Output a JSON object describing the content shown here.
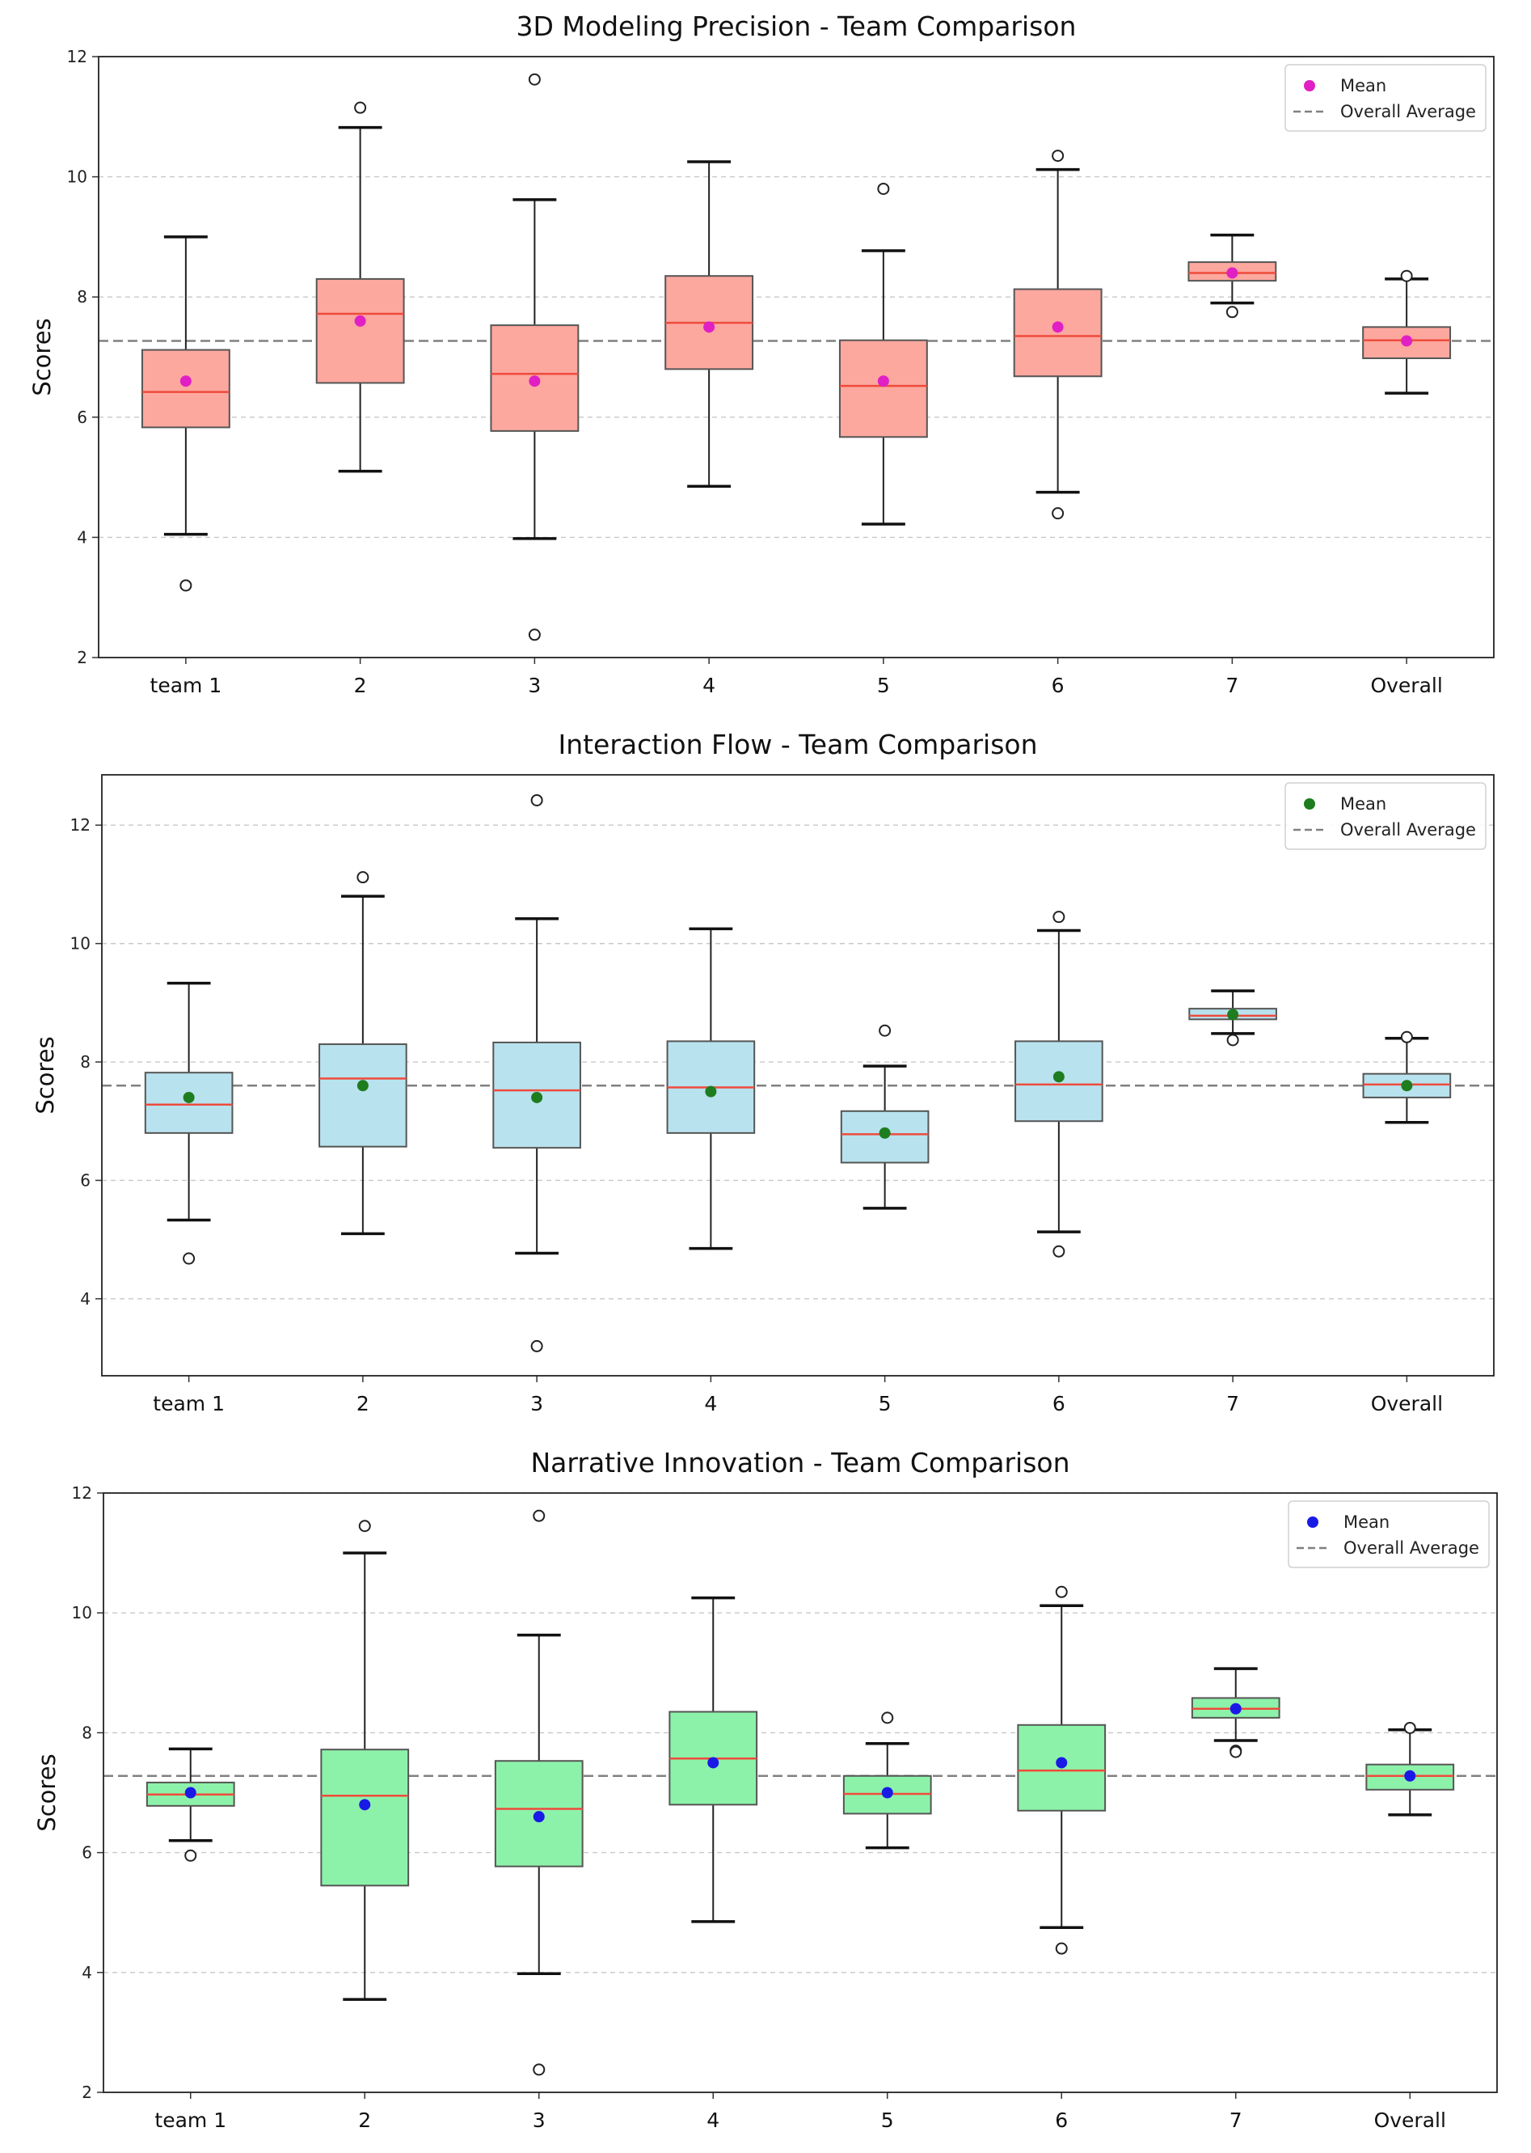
{
  "chart_data": [
    {
      "type": "box",
      "title": "3D Modeling Precision - Team Comparison",
      "ylabel": "Scores",
      "xlabel": "",
      "ylim": [
        2,
        12
      ],
      "yticks": [
        2,
        4,
        6,
        8,
        10,
        12
      ],
      "categories": [
        "team 1",
        "2",
        "3",
        "4",
        "5",
        "6",
        "7",
        "Overall"
      ],
      "overall_average": 7.27,
      "legend": {
        "position": "top-right",
        "entries": [
          "Mean",
          "Overall Average"
        ]
      },
      "grid": "y-dashed",
      "colors": {
        "box": "#fca89f",
        "median": "#ef4b3c",
        "mean": "#e020c4",
        "average_line": "#808080"
      },
      "boxes": [
        {
          "whislo": 4.05,
          "q1": 5.83,
          "med": 6.42,
          "q3": 7.12,
          "whishi": 9.0,
          "mean": 6.6,
          "fliers": [
            3.2
          ]
        },
        {
          "whislo": 5.1,
          "q1": 6.57,
          "med": 7.72,
          "q3": 8.3,
          "whishi": 10.82,
          "mean": 7.6,
          "fliers": [
            11.15
          ]
        },
        {
          "whislo": 3.98,
          "q1": 5.77,
          "med": 6.72,
          "q3": 7.53,
          "whishi": 9.62,
          "mean": 6.6,
          "fliers": [
            11.62,
            2.38
          ]
        },
        {
          "whislo": 4.85,
          "q1": 6.8,
          "med": 7.57,
          "q3": 8.35,
          "whishi": 10.25,
          "mean": 7.5,
          "fliers": []
        },
        {
          "whislo": 4.22,
          "q1": 5.67,
          "med": 6.52,
          "q3": 7.28,
          "whishi": 8.77,
          "mean": 6.6,
          "fliers": [
            9.8
          ]
        },
        {
          "whislo": 4.75,
          "q1": 6.68,
          "med": 7.35,
          "q3": 8.13,
          "whishi": 10.12,
          "mean": 7.5,
          "fliers": [
            10.35,
            4.4
          ]
        },
        {
          "whislo": 7.9,
          "q1": 8.27,
          "med": 8.4,
          "q3": 8.58,
          "whishi": 9.03,
          "mean": 8.4,
          "fliers": [
            7.75
          ]
        },
        {
          "whislo": 6.4,
          "q1": 6.98,
          "med": 7.28,
          "q3": 7.5,
          "whishi": 8.3,
          "mean": 7.27,
          "fliers": [
            8.35
          ]
        }
      ]
    },
    {
      "type": "box",
      "title": "Interaction Flow - Team Comparison",
      "ylabel": "Scores",
      "xlabel": "",
      "ylim": [
        2.7,
        12.85
      ],
      "yticks": [
        4,
        6,
        8,
        10,
        12
      ],
      "categories": [
        "team 1",
        "2",
        "3",
        "4",
        "5",
        "6",
        "7",
        "Overall"
      ],
      "overall_average": 7.6,
      "legend": {
        "position": "top-right",
        "entries": [
          "Mean",
          "Overall Average"
        ]
      },
      "grid": "y-dashed",
      "colors": {
        "box": "#b8e2ee",
        "median": "#ef4b3c",
        "mean": "#1e7d1e",
        "average_line": "#808080"
      },
      "boxes": [
        {
          "whislo": 5.33,
          "q1": 6.8,
          "med": 7.28,
          "q3": 7.82,
          "whishi": 9.33,
          "mean": 7.4,
          "fliers": [
            4.68
          ]
        },
        {
          "whislo": 5.1,
          "q1": 6.57,
          "med": 7.72,
          "q3": 8.3,
          "whishi": 10.8,
          "mean": 7.6,
          "fliers": [
            11.12
          ]
        },
        {
          "whislo": 4.77,
          "q1": 6.55,
          "med": 7.52,
          "q3": 8.33,
          "whishi": 10.42,
          "mean": 7.4,
          "fliers": [
            12.42,
            3.2
          ]
        },
        {
          "whislo": 4.85,
          "q1": 6.8,
          "med": 7.57,
          "q3": 8.35,
          "whishi": 10.25,
          "mean": 7.5,
          "fliers": []
        },
        {
          "whislo": 5.53,
          "q1": 6.3,
          "med": 6.78,
          "q3": 7.17,
          "whishi": 7.93,
          "mean": 6.8,
          "fliers": [
            8.53
          ]
        },
        {
          "whislo": 5.13,
          "q1": 7.0,
          "med": 7.62,
          "q3": 8.35,
          "whishi": 10.22,
          "mean": 7.75,
          "fliers": [
            10.45,
            4.8
          ]
        },
        {
          "whislo": 8.48,
          "q1": 8.72,
          "med": 8.78,
          "q3": 8.9,
          "whishi": 9.2,
          "mean": 8.8,
          "fliers": [
            8.37
          ]
        },
        {
          "whislo": 6.98,
          "q1": 7.4,
          "med": 7.62,
          "q3": 7.8,
          "whishi": 8.4,
          "mean": 7.6,
          "fliers": [
            8.42
          ]
        }
      ]
    },
    {
      "type": "box",
      "title": "Narrative Innovation - Team Comparison",
      "ylabel": "Scores",
      "xlabel": "",
      "ylim": [
        2,
        12
      ],
      "yticks": [
        2,
        4,
        6,
        8,
        10,
        12
      ],
      "categories": [
        "team 1",
        "2",
        "3",
        "4",
        "5",
        "6",
        "7",
        "Overall"
      ],
      "overall_average": 7.28,
      "legend": {
        "position": "top-right",
        "entries": [
          "Mean",
          "Overall Average"
        ]
      },
      "grid": "y-dashed",
      "colors": {
        "box": "#8df2a9",
        "median": "#ef4b3c",
        "mean": "#1a1ae6",
        "average_line": "#808080"
      },
      "boxes": [
        {
          "whislo": 6.2,
          "q1": 6.78,
          "med": 6.97,
          "q3": 7.17,
          "whishi": 7.73,
          "mean": 7.0,
          "fliers": [
            5.95
          ]
        },
        {
          "whislo": 3.55,
          "q1": 5.45,
          "med": 6.95,
          "q3": 7.72,
          "whishi": 11.0,
          "mean": 6.8,
          "fliers": [
            11.45
          ]
        },
        {
          "whislo": 3.98,
          "q1": 5.77,
          "med": 6.73,
          "q3": 7.53,
          "whishi": 9.63,
          "mean": 6.6,
          "fliers": [
            11.62,
            2.38
          ]
        },
        {
          "whislo": 4.85,
          "q1": 6.8,
          "med": 7.57,
          "q3": 8.35,
          "whishi": 10.25,
          "mean": 7.5,
          "fliers": []
        },
        {
          "whislo": 6.08,
          "q1": 6.65,
          "med": 6.98,
          "q3": 7.28,
          "whishi": 7.82,
          "mean": 7.0,
          "fliers": [
            8.25
          ]
        },
        {
          "whislo": 4.75,
          "q1": 6.7,
          "med": 7.37,
          "q3": 8.13,
          "whishi": 10.12,
          "mean": 7.5,
          "fliers": [
            10.35,
            4.4
          ]
        },
        {
          "whislo": 7.87,
          "q1": 8.25,
          "med": 8.4,
          "q3": 8.58,
          "whishi": 9.07,
          "mean": 8.4,
          "fliers": [
            7.7,
            7.68
          ]
        },
        {
          "whislo": 6.63,
          "q1": 7.05,
          "med": 7.28,
          "q3": 7.47,
          "whishi": 8.05,
          "mean": 7.28,
          "fliers": [
            8.08
          ]
        }
      ]
    }
  ]
}
